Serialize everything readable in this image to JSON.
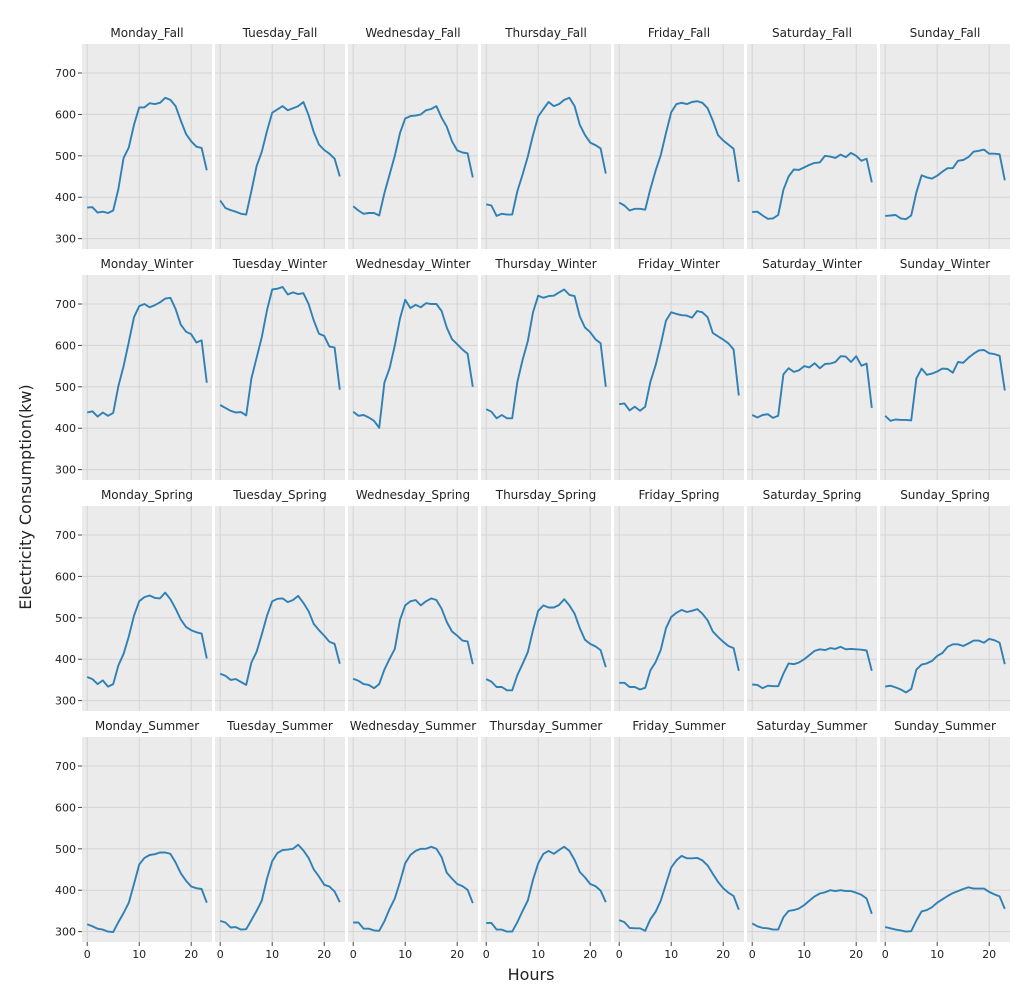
{
  "chart_data": {
    "type": "line",
    "layout": "7x4 small multiples, shared axes",
    "xlabel": "Hours",
    "ylabel": "Electricity Consumption(kw)",
    "xlim": [
      -1,
      24
    ],
    "ylim": [
      275,
      770
    ],
    "xticks": [
      0,
      10,
      20
    ],
    "yticks": [
      300,
      400,
      500,
      600,
      700
    ],
    "grid": true,
    "x": [
      0,
      1,
      2,
      3,
      4,
      5,
      6,
      7,
      8,
      9,
      10,
      11,
      12,
      13,
      14,
      15,
      16,
      17,
      18,
      19,
      20,
      21,
      22,
      23
    ],
    "series_color": "#2f80b5",
    "panels": [
      {
        "title": "Monday_Fall",
        "values": [
          375,
          376,
          363,
          365,
          362,
          368,
          420,
          495,
          520,
          575,
          617,
          617,
          627,
          625,
          628,
          640,
          635,
          620,
          585,
          553,
          535,
          522,
          519,
          465
        ]
      },
      {
        "title": "Tuesday_Fall",
        "values": [
          392,
          374,
          369,
          365,
          360,
          358,
          415,
          475,
          510,
          560,
          604,
          612,
          620,
          610,
          615,
          620,
          630,
          598,
          557,
          527,
          514,
          505,
          493,
          450
        ]
      },
      {
        "title": "Wednesday_Fall",
        "values": [
          378,
          368,
          360,
          362,
          362,
          356,
          410,
          455,
          500,
          555,
          590,
          596,
          597,
          600,
          610,
          613,
          620,
          592,
          570,
          535,
          513,
          508,
          506,
          448
        ]
      },
      {
        "title": "Thursday_Fall",
        "values": [
          383,
          380,
          355,
          360,
          358,
          358,
          415,
          455,
          498,
          550,
          595,
          613,
          630,
          620,
          625,
          635,
          640,
          620,
          575,
          550,
          532,
          526,
          518,
          457
        ]
      },
      {
        "title": "Friday_Fall",
        "values": [
          387,
          380,
          368,
          372,
          372,
          370,
          420,
          464,
          502,
          555,
          605,
          625,
          628,
          625,
          630,
          632,
          628,
          615,
          585,
          550,
          537,
          527,
          517,
          437
        ]
      },
      {
        "title": "Saturday_Fall",
        "values": [
          364,
          365,
          356,
          348,
          349,
          357,
          418,
          450,
          467,
          466,
          472,
          478,
          483,
          484,
          500,
          498,
          495,
          503,
          497,
          507,
          500,
          488,
          493,
          436
        ]
      },
      {
        "title": "Sunday_Fall",
        "values": [
          355,
          356,
          357,
          349,
          347,
          356,
          412,
          453,
          448,
          445,
          452,
          462,
          470,
          470,
          488,
          490,
          497,
          510,
          512,
          515,
          505,
          505,
          504,
          441
        ]
      }
    ],
    "panels_winter": [
      {
        "title": "Monday_Winter",
        "values": [
          438,
          441,
          428,
          438,
          430,
          437,
          502,
          550,
          608,
          668,
          695,
          700,
          692,
          697,
          704,
          713,
          715,
          688,
          650,
          633,
          627,
          607,
          612,
          510
        ]
      },
      {
        "title": "Tuesday_Winter",
        "values": [
          456,
          449,
          442,
          438,
          439,
          431,
          520,
          570,
          620,
          685,
          735,
          737,
          741,
          723,
          728,
          724,
          726,
          700,
          660,
          628,
          623,
          597,
          595,
          493
        ]
      },
      {
        "title": "Wednesday_Winter",
        "values": [
          440,
          430,
          432,
          426,
          418,
          401,
          510,
          545,
          600,
          665,
          710,
          690,
          698,
          692,
          702,
          700,
          700,
          683,
          643,
          615,
          603,
          590,
          580,
          500
        ]
      },
      {
        "title": "Thursday_Winter",
        "values": [
          446,
          440,
          424,
          432,
          424,
          424,
          512,
          565,
          610,
          680,
          720,
          715,
          719,
          720,
          728,
          735,
          722,
          719,
          670,
          643,
          632,
          615,
          605,
          500
        ]
      },
      {
        "title": "Friday_Winter",
        "values": [
          458,
          460,
          443,
          452,
          442,
          452,
          512,
          552,
          603,
          660,
          680,
          676,
          673,
          672,
          667,
          683,
          680,
          668,
          630,
          622,
          614,
          605,
          590,
          479
        ]
      },
      {
        "title": "Saturday_Winter",
        "values": [
          432,
          426,
          432,
          434,
          425,
          430,
          530,
          545,
          536,
          540,
          550,
          547,
          557,
          545,
          555,
          556,
          560,
          574,
          573,
          560,
          574,
          551,
          556,
          449
        ]
      },
      {
        "title": "Sunday_Winter",
        "values": [
          430,
          418,
          421,
          420,
          420,
          419,
          520,
          544,
          529,
          532,
          537,
          544,
          543,
          534,
          560,
          558,
          570,
          580,
          588,
          589,
          581,
          579,
          575,
          491
        ]
      }
    ],
    "panels_spring": [
      {
        "title": "Monday_Spring",
        "values": [
          357,
          352,
          340,
          349,
          334,
          340,
          385,
          413,
          455,
          505,
          540,
          550,
          554,
          548,
          547,
          561,
          545,
          522,
          496,
          478,
          470,
          465,
          462,
          402
        ]
      },
      {
        "title": "Tuesday_Spring",
        "values": [
          365,
          360,
          350,
          352,
          345,
          338,
          392,
          418,
          460,
          505,
          540,
          546,
          547,
          538,
          543,
          553,
          536,
          516,
          485,
          470,
          457,
          442,
          437,
          389
        ]
      },
      {
        "title": "Wednesday_Spring",
        "values": [
          353,
          348,
          340,
          338,
          330,
          340,
          375,
          401,
          425,
          495,
          530,
          540,
          543,
          530,
          540,
          547,
          543,
          522,
          490,
          467,
          457,
          445,
          443,
          388
        ]
      },
      {
        "title": "Thursday_Spring",
        "values": [
          352,
          346,
          333,
          333,
          325,
          325,
          362,
          389,
          417,
          470,
          517,
          530,
          525,
          525,
          531,
          545,
          530,
          510,
          475,
          447,
          437,
          431,
          422,
          381
        ]
      },
      {
        "title": "Friday_Spring",
        "values": [
          343,
          343,
          333,
          333,
          327,
          331,
          373,
          393,
          423,
          475,
          502,
          512,
          519,
          514,
          517,
          521,
          510,
          494,
          467,
          454,
          442,
          432,
          427,
          372
        ]
      },
      {
        "title": "Saturday_Spring",
        "values": [
          339,
          338,
          330,
          336,
          335,
          335,
          365,
          390,
          388,
          392,
          400,
          410,
          420,
          424,
          422,
          427,
          425,
          430,
          424,
          425,
          424,
          423,
          421,
          372
        ]
      },
      {
        "title": "Sunday_Spring",
        "values": [
          334,
          336,
          332,
          327,
          320,
          328,
          375,
          387,
          390,
          396,
          408,
          415,
          430,
          436,
          436,
          432,
          438,
          445,
          445,
          440,
          449,
          446,
          440,
          388
        ]
      }
    ],
    "panels_summer": [
      {
        "title": "Monday_Summer",
        "values": [
          318,
          313,
          307,
          305,
          300,
          299,
          323,
          345,
          370,
          415,
          462,
          478,
          485,
          487,
          491,
          491,
          488,
          467,
          441,
          423,
          409,
          405,
          403,
          370
        ]
      },
      {
        "title": "Tuesday_Summer",
        "values": [
          326,
          322,
          310,
          311,
          305,
          306,
          328,
          350,
          375,
          428,
          470,
          490,
          497,
          498,
          500,
          510,
          496,
          478,
          450,
          433,
          413,
          409,
          397,
          371
        ]
      },
      {
        "title": "Wednesday_Summer",
        "values": [
          322,
          322,
          307,
          307,
          303,
          302,
          325,
          355,
          380,
          420,
          465,
          485,
          495,
          500,
          500,
          505,
          500,
          480,
          442,
          428,
          415,
          410,
          401,
          369
        ]
      },
      {
        "title": "Thursday_Summer",
        "values": [
          321,
          321,
          305,
          305,
          300,
          300,
          323,
          350,
          375,
          425,
          465,
          488,
          495,
          488,
          497,
          505,
          495,
          473,
          444,
          431,
          415,
          410,
          399,
          371
        ]
      },
      {
        "title": "Friday_Summer",
        "values": [
          328,
          323,
          309,
          308,
          308,
          302,
          330,
          348,
          375,
          415,
          455,
          472,
          483,
          477,
          477,
          478,
          472,
          460,
          440,
          420,
          405,
          394,
          386,
          353
        ]
      },
      {
        "title": "Saturday_Summer",
        "values": [
          320,
          313,
          309,
          308,
          305,
          305,
          335,
          350,
          352,
          356,
          364,
          375,
          385,
          392,
          395,
          400,
          398,
          400,
          398,
          398,
          394,
          389,
          380,
          343
        ]
      },
      {
        "title": "Sunday_Summer",
        "values": [
          311,
          308,
          305,
          303,
          300,
          301,
          327,
          349,
          352,
          359,
          370,
          378,
          386,
          393,
          398,
          403,
          407,
          404,
          404,
          404,
          396,
          390,
          385,
          355
        ]
      }
    ]
  }
}
